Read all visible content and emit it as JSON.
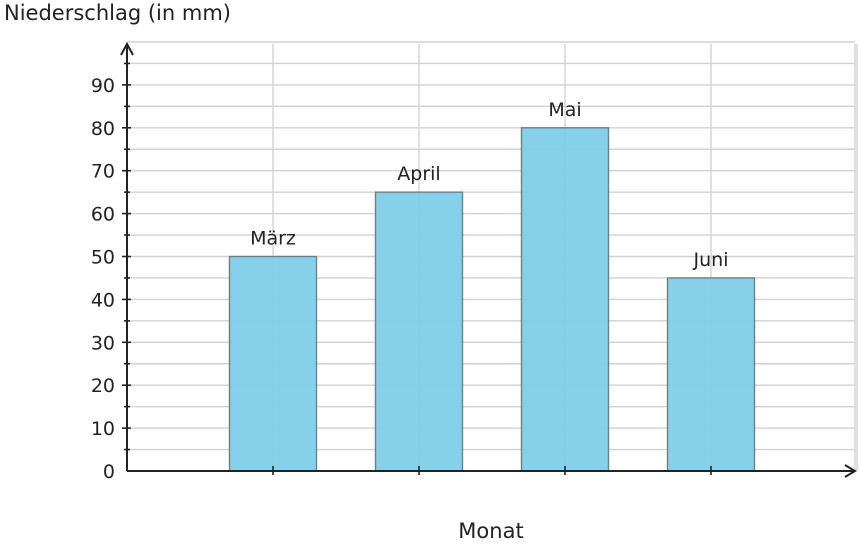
{
  "chart_data": {
    "type": "bar",
    "categories": [
      "März",
      "April",
      "Mai",
      "Juni"
    ],
    "values": [
      50,
      65,
      80,
      45
    ],
    "ylabel": "Niederschlag (in mm)",
    "xlabel": "Monat",
    "ylim": [
      0,
      100
    ],
    "yticks": [
      0,
      10,
      20,
      30,
      40,
      50,
      60,
      70,
      80,
      90
    ],
    "grid": true,
    "bar_color": "#7fcde8"
  }
}
